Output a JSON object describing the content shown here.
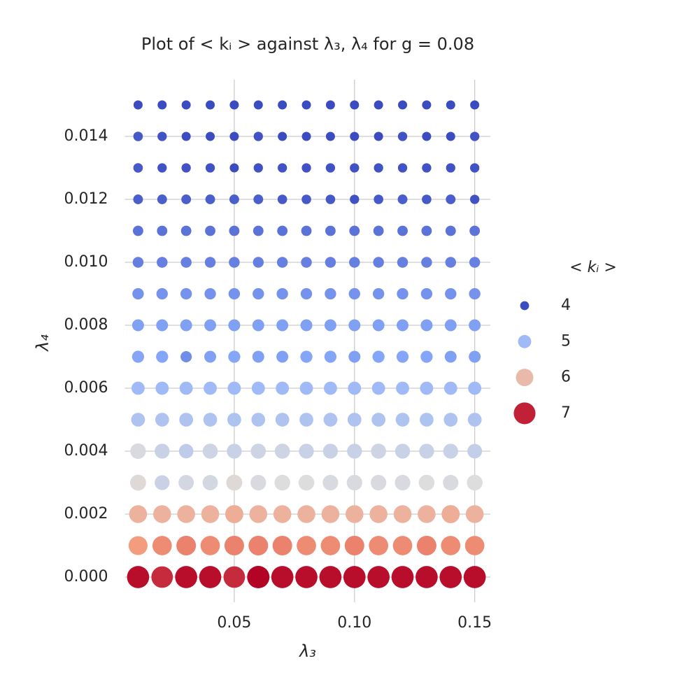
{
  "chart_data": {
    "type": "scatter",
    "title": "Plot of < kᵢ > against λ₃, λ₄ for g = 0.08",
    "x_label": "λ₃",
    "y_label": "λ₄",
    "x": [
      0.01,
      0.02,
      0.03,
      0.04,
      0.05,
      0.06,
      0.07,
      0.08,
      0.09,
      0.1,
      0.11,
      0.12,
      0.13,
      0.14,
      0.15
    ],
    "y": [
      0.0,
      0.001,
      0.002,
      0.003,
      0.004,
      0.005,
      0.006,
      0.007,
      0.008,
      0.009,
      0.01,
      0.011,
      0.012,
      0.013,
      0.014,
      0.015
    ],
    "values": [
      [
        7.1,
        6.95,
        7.1,
        7.1,
        6.95,
        7.15,
        7.1,
        7.1,
        7.1,
        7.1,
        7.1,
        7.1,
        7.1,
        7.1,
        7.1
      ],
      [
        6.35,
        6.45,
        6.5,
        6.45,
        6.5,
        6.5,
        6.5,
        6.45,
        6.45,
        6.5,
        6.45,
        6.45,
        6.5,
        6.45,
        6.45
      ],
      [
        6.1,
        6.1,
        6.1,
        6.1,
        6.15,
        6.1,
        6.1,
        6.1,
        6.1,
        6.1,
        6.1,
        6.1,
        6.1,
        6.15,
        6.1
      ],
      [
        5.65,
        5.4,
        5.5,
        5.5,
        5.65,
        5.55,
        5.6,
        5.6,
        5.55,
        5.55,
        5.55,
        5.55,
        5.6,
        5.55,
        5.6
      ],
      [
        5.55,
        5.4,
        5.3,
        5.45,
        5.4,
        5.45,
        5.45,
        5.4,
        5.4,
        5.4,
        5.45,
        5.4,
        5.4,
        5.4,
        5.35
      ],
      [
        5.15,
        5.15,
        5.15,
        5.15,
        5.15,
        5.15,
        5.15,
        5.15,
        5.15,
        5.15,
        5.15,
        5.15,
        5.15,
        5.15,
        5.15
      ],
      [
        5.0,
        5.0,
        5.0,
        5.0,
        5.0,
        5.0,
        5.0,
        5.0,
        5.0,
        5.0,
        5.0,
        5.0,
        5.0,
        5.0,
        5.0
      ],
      [
        4.75,
        4.75,
        4.55,
        4.7,
        4.75,
        4.7,
        4.7,
        4.75,
        4.75,
        4.7,
        4.75,
        4.75,
        4.75,
        4.7,
        4.7
      ],
      [
        4.7,
        4.7,
        4.7,
        4.7,
        4.7,
        4.7,
        4.7,
        4.7,
        4.7,
        4.7,
        4.7,
        4.7,
        4.7,
        4.7,
        4.7
      ],
      [
        4.6,
        4.6,
        4.6,
        4.6,
        4.6,
        4.6,
        4.6,
        4.6,
        4.6,
        4.6,
        4.6,
        4.6,
        4.6,
        4.6,
        4.6
      ],
      [
        4.45,
        4.45,
        4.45,
        4.45,
        4.45,
        4.45,
        4.45,
        4.45,
        4.45,
        4.45,
        4.45,
        4.45,
        4.45,
        4.45,
        4.45
      ],
      [
        4.35,
        4.35,
        4.35,
        4.35,
        4.35,
        4.35,
        4.35,
        4.35,
        4.35,
        4.35,
        4.35,
        4.35,
        4.35,
        4.35,
        4.35
      ],
      [
        4.2,
        4.2,
        4.2,
        4.2,
        4.2,
        4.2,
        4.15,
        4.15,
        4.15,
        4.1,
        4.15,
        4.2,
        4.15,
        4.2,
        4.1
      ],
      [
        4.15,
        4.1,
        4.1,
        4.1,
        4.05,
        4.1,
        4.1,
        4.1,
        4.1,
        4.1,
        4.1,
        4.1,
        4.1,
        4.1,
        4.1
      ],
      [
        4.15,
        4.1,
        4.05,
        4.05,
        4.05,
        4.1,
        4.05,
        4.05,
        4.05,
        4.05,
        4.05,
        4.1,
        4.05,
        4.05,
        4.1
      ],
      [
        4.05,
        4.05,
        4.05,
        4.05,
        4.05,
        4.05,
        4.05,
        4.05,
        4.05,
        4.05,
        4.05,
        4.05,
        4.05,
        4.05,
        4.05
      ]
    ],
    "colormap": "coolwarm",
    "xlim": [
      0.0045,
      0.1565
    ],
    "ylim": [
      -0.0008,
      0.0158
    ],
    "xticks": [
      {
        "value": 0.05,
        "label": "0.05"
      },
      {
        "value": 0.1,
        "label": "0.10"
      },
      {
        "value": 0.15,
        "label": "0.15"
      }
    ],
    "yticks": [
      {
        "value": 0,
        "label": "0.000"
      },
      {
        "value": 0.002,
        "label": "0.002"
      },
      {
        "value": 0.004,
        "label": "0.004"
      },
      {
        "value": 0.006,
        "label": "0.006"
      },
      {
        "value": 0.008,
        "label": "0.008"
      },
      {
        "value": 0.01,
        "label": "0.010"
      },
      {
        "value": 0.012,
        "label": "0.012"
      },
      {
        "value": 0.014,
        "label": "0.014"
      }
    ],
    "grid": true,
    "legend": {
      "title": "< kᵢ >",
      "entries": [
        4,
        5,
        6,
        7
      ],
      "position": "right"
    }
  }
}
